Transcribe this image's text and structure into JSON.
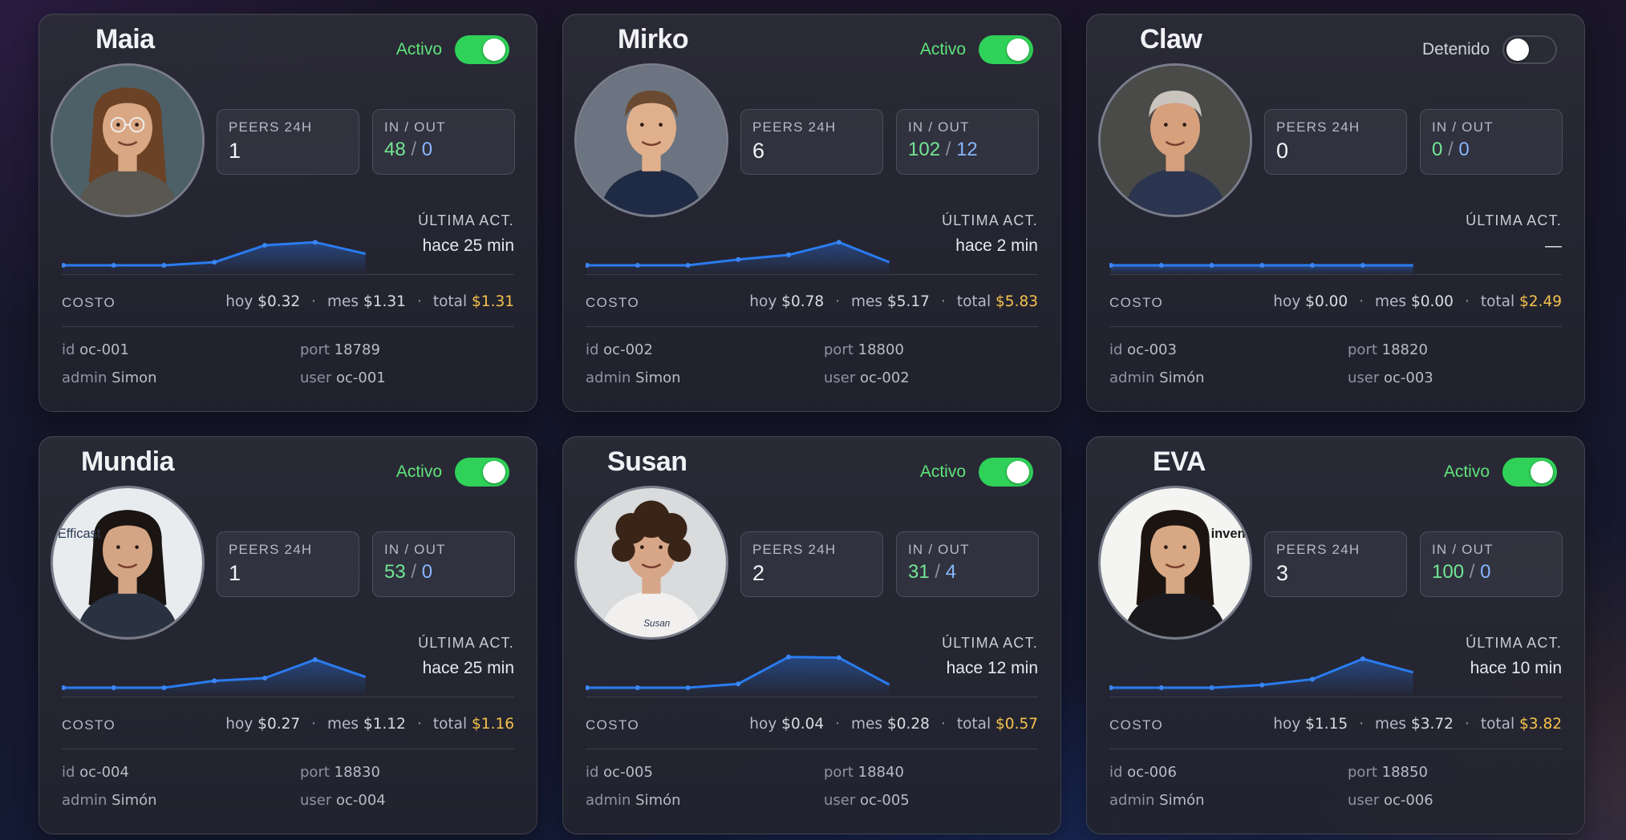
{
  "cards": [
    {
      "name": "Maia",
      "status": "Activo",
      "active": true,
      "peers_label": "PEERS 24H",
      "peers": "1",
      "io_label": "IN / OUT",
      "io_in": "48",
      "io_sep": "/",
      "io_out": "0",
      "ultima_label": "ÚLTIMA ACT.",
      "ultima_value": "hace 25 min",
      "spark": [
        0,
        0,
        0,
        0.08,
        0.52,
        0.6,
        0.3
      ],
      "costo_label": "COSTO",
      "hoy_label": "hoy",
      "hoy": "$0.32",
      "mes_label": "mes",
      "mes": "$1.31",
      "total_label": "total",
      "total": "$1.31",
      "id_label": "id",
      "id": "oc-001",
      "port_label": "port",
      "port": "18789",
      "admin_label": "admin",
      "admin": "Simon",
      "user_label": "user",
      "user": "oc-001",
      "avatar": {
        "skin": "#d9a783",
        "hair": "#6b4225",
        "shirt": "#5a5650",
        "bg": "#4d6068",
        "glasses": true,
        "long_hair": true
      }
    },
    {
      "name": "Mirko",
      "status": "Activo",
      "active": true,
      "peers_label": "PEERS 24H",
      "peers": "6",
      "io_label": "IN / OUT",
      "io_in": "102",
      "io_sep": "/",
      "io_out": "12",
      "ultima_label": "ÚLTIMA ACT.",
      "ultima_value": "hace 2 min",
      "spark": [
        0,
        0,
        0,
        0.15,
        0.27,
        0.6,
        0.08
      ],
      "costo_label": "COSTO",
      "hoy_label": "hoy",
      "hoy": "$0.78",
      "mes_label": "mes",
      "mes": "$5.17",
      "total_label": "total",
      "total": "$5.83",
      "id_label": "id",
      "id": "oc-002",
      "port_label": "port",
      "port": "18800",
      "admin_label": "admin",
      "admin": "Simon",
      "user_label": "user",
      "user": "oc-002",
      "avatar": {
        "skin": "#e0b08d",
        "hair": "#6a4a30",
        "shirt": "#1f2a44",
        "bg": "#6b7480",
        "glasses": false,
        "long_hair": false
      }
    },
    {
      "name": "Claw",
      "status": "Detenido",
      "active": false,
      "peers_label": "PEERS 24H",
      "peers": "0",
      "io_label": "IN / OUT",
      "io_in": "0",
      "io_sep": "/",
      "io_out": "0",
      "ultima_label": "ÚLTIMA ACT.",
      "ultima_value": "—",
      "spark": [
        0,
        0,
        0,
        0,
        0,
        0,
        0
      ],
      "costo_label": "COSTO",
      "hoy_label": "hoy",
      "hoy": "$0.00",
      "mes_label": "mes",
      "mes": "$0.00",
      "total_label": "total",
      "total": "$2.49",
      "id_label": "id",
      "id": "oc-003",
      "port_label": "port",
      "port": "18820",
      "admin_label": "admin",
      "admin": "Simón",
      "user_label": "user",
      "user": "oc-003",
      "avatar": {
        "skin": "#d6a07c",
        "hair": "#c9c5be",
        "shirt": "#2b3550",
        "bg": "#4a4a48",
        "glasses": false,
        "long_hair": false
      }
    },
    {
      "name": "Mundia",
      "status": "Activo",
      "active": true,
      "peers_label": "PEERS 24H",
      "peers": "1",
      "io_label": "IN / OUT",
      "io_in": "53",
      "io_sep": "/",
      "io_out": "0",
      "ultima_label": "ÚLTIMA ACT.",
      "ultima_value": "hace 25 min",
      "spark": [
        0,
        0,
        0,
        0.18,
        0.25,
        0.73,
        0.28
      ],
      "costo_label": "COSTO",
      "hoy_label": "hoy",
      "hoy": "$0.27",
      "mes_label": "mes",
      "mes": "$1.12",
      "total_label": "total",
      "total": "$1.16",
      "id_label": "id",
      "id": "oc-004",
      "port_label": "port",
      "port": "18830",
      "admin_label": "admin",
      "admin": "Simón",
      "user_label": "user",
      "user": "oc-004",
      "avatar_text": "Efficast",
      "avatar": {
        "skin": "#d4a584",
        "hair": "#1a1412",
        "shirt": "#2a3140",
        "bg": "#e8ecef",
        "glasses": false,
        "long_hair": true
      }
    },
    {
      "name": "Susan",
      "status": "Activo",
      "active": true,
      "peers_label": "PEERS 24H",
      "peers": "2",
      "io_label": "IN / OUT",
      "io_in": "31",
      "io_sep": "/",
      "io_out": "4",
      "ultima_label": "ÚLTIMA ACT.",
      "ultima_value": "hace 12 min",
      "spark": [
        0,
        0,
        0,
        0.1,
        0.8,
        0.78,
        0.08
      ],
      "costo_label": "COSTO",
      "hoy_label": "hoy",
      "hoy": "$0.04",
      "mes_label": "mes",
      "mes": "$0.28",
      "total_label": "total",
      "total": "$0.57",
      "id_label": "id",
      "id": "oc-005",
      "port_label": "port",
      "port": "18840",
      "admin_label": "admin",
      "admin": "Simón",
      "user_label": "user",
      "user": "oc-005",
      "avatar_text": "Susan",
      "avatar": {
        "skin": "#d7a688",
        "hair": "#3a2418",
        "shirt": "#f2f0ee",
        "bg": "#d9dbdc",
        "glasses": false,
        "long_hair": false,
        "curly": true
      }
    },
    {
      "name": "EVA",
      "status": "Activo",
      "active": true,
      "peers_label": "PEERS 24H",
      "peers": "3",
      "io_label": "IN / OUT",
      "io_in": "100",
      "io_sep": "/",
      "io_out": "0",
      "ultima_label": "ÚLTIMA ACT.",
      "ultima_value": "hace 10 min",
      "spark": [
        0,
        0,
        0,
        0.07,
        0.22,
        0.75,
        0.4
      ],
      "costo_label": "COSTO",
      "hoy_label": "hoy",
      "hoy": "$1.15",
      "mes_label": "mes",
      "mes": "$3.72",
      "total_label": "total",
      "total": "$3.82",
      "id_label": "id",
      "id": "oc-006",
      "port_label": "port",
      "port": "18850",
      "admin_label": "admin",
      "admin": "Simón",
      "user_label": "user",
      "user": "oc-006",
      "avatar_text": "inventu",
      "avatar": {
        "skin": "#d8a884",
        "hair": "#1c1410",
        "shirt": "#1a1a1e",
        "bg": "#f4f4f2",
        "glasses": false,
        "long_hair": true
      }
    }
  ],
  "colors": {
    "active": "#2fd158",
    "active_text": "#5ee37a",
    "io_in": "#72e694",
    "io_out": "#86b6ff",
    "total": "#f6c24b",
    "spark_line": "#2a7cf0"
  }
}
